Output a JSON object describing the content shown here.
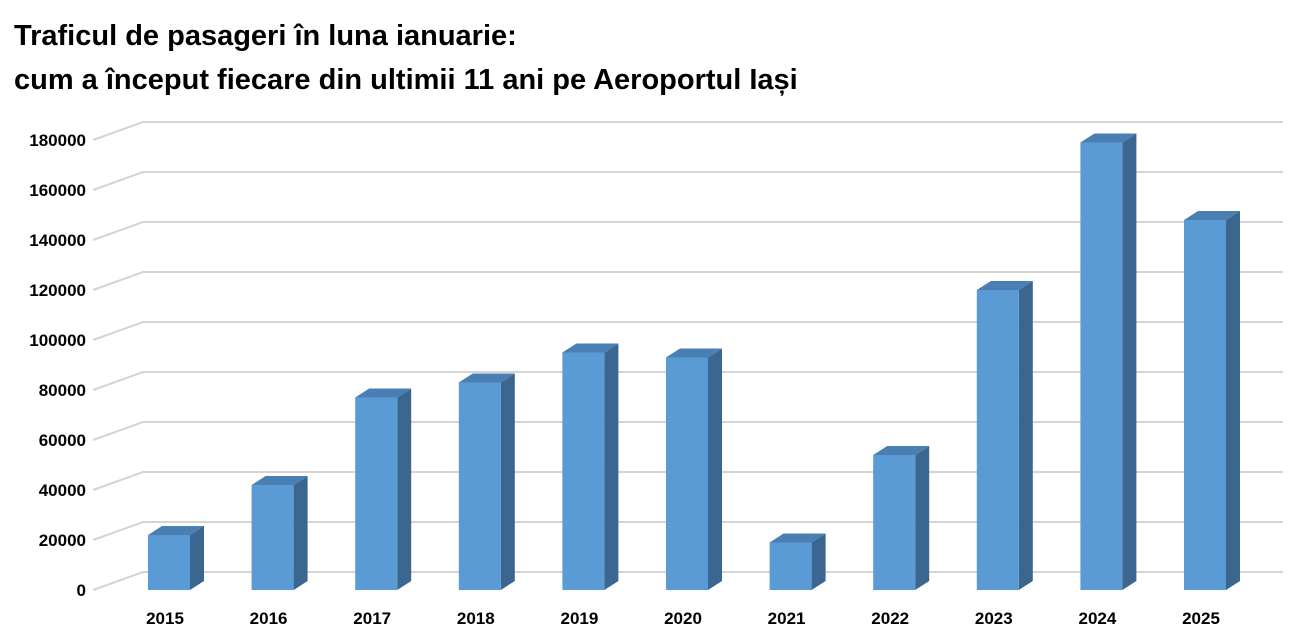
{
  "chart_data": {
    "type": "bar",
    "title": "Traficul de pasageri în luna ianuarie:",
    "subtitle": "cum a început fiecare din ultimii 11 ani pe Aeroportul Iași",
    "xlabel": "",
    "ylabel": "",
    "categories": [
      "2015",
      "2016",
      "2017",
      "2018",
      "2019",
      "2020",
      "2021",
      "2022",
      "2023",
      "2024",
      "2025"
    ],
    "values": [
      22000,
      42000,
      77000,
      83000,
      95000,
      93000,
      19000,
      54000,
      120000,
      179000,
      148000
    ],
    "ylim": [
      0,
      180000
    ],
    "yticks": [
      "0",
      "20000",
      "40000",
      "60000",
      "80000",
      "100000",
      "120000",
      "140000",
      "160000",
      "180000"
    ],
    "grid": true,
    "legend": "none",
    "style": "3d-column",
    "colors": {
      "bar_front": "#5b9bd5",
      "bar_side": "#3a6690",
      "bar_top": "#4a7fb3",
      "grid": "#d4d4d4"
    }
  }
}
